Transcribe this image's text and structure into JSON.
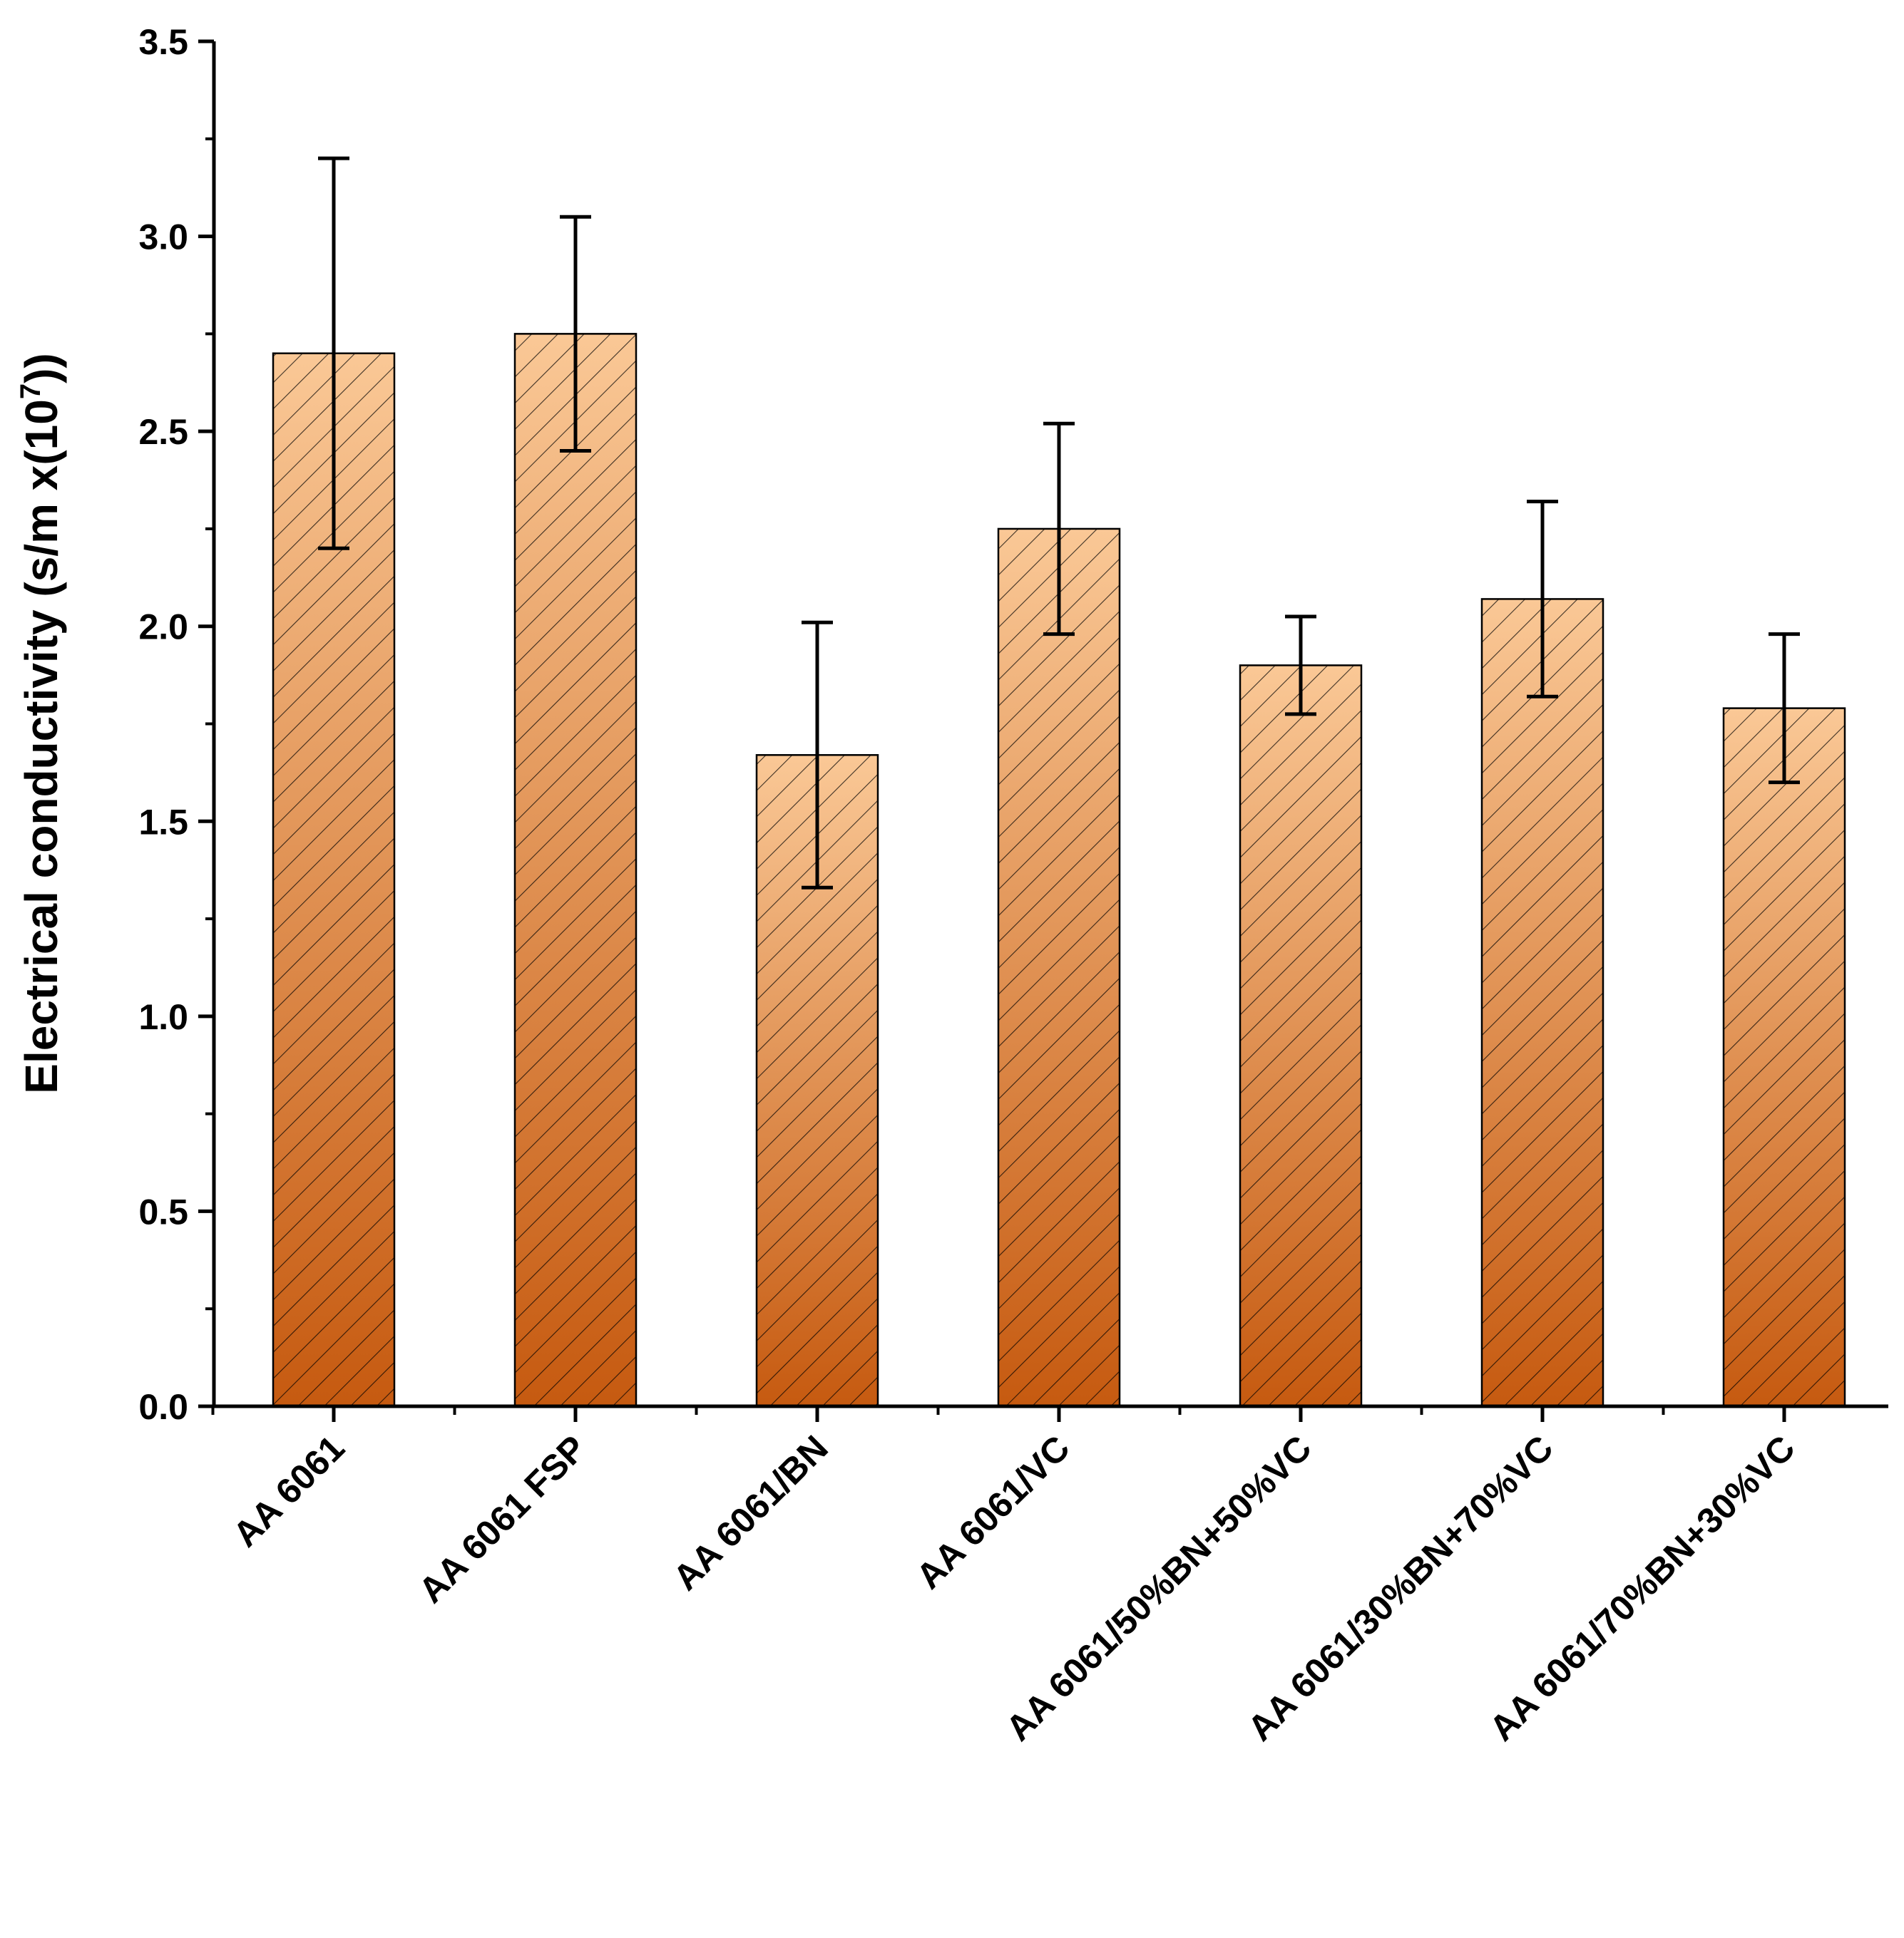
{
  "chart_data": {
    "type": "bar",
    "title": "",
    "xlabel": "",
    "ylabel": {
      "prefix": "Electrical conductivity (s/m x(10",
      "exponent": "7",
      "suffix": "))"
    },
    "ylim": [
      0,
      3.5
    ],
    "yticks": [
      "0.0",
      "0.5",
      "1.0",
      "1.5",
      "2.0",
      "2.5",
      "3.0",
      "3.5"
    ],
    "categories": [
      "AA 6061",
      "AA 6061 FSP",
      "AA 6061/BN",
      "AA 6061/VC",
      "AA 6061/50%BN+50%VC",
      "AA 6061/30%BN+70%VC",
      "AA 6061/70%BN+30%VC"
    ],
    "values": [
      2.7,
      2.75,
      1.67,
      2.25,
      1.9,
      2.07,
      1.79
    ],
    "errors": [
      0.5,
      0.3,
      0.34,
      0.27,
      0.125,
      0.25,
      0.19
    ],
    "grid": false,
    "legend": "none",
    "colors": {
      "bar_top": "#FAC896",
      "bar_bottom": "#C65A10",
      "outline": "#000000",
      "hatch": "#000000",
      "axis": "#000000"
    }
  }
}
